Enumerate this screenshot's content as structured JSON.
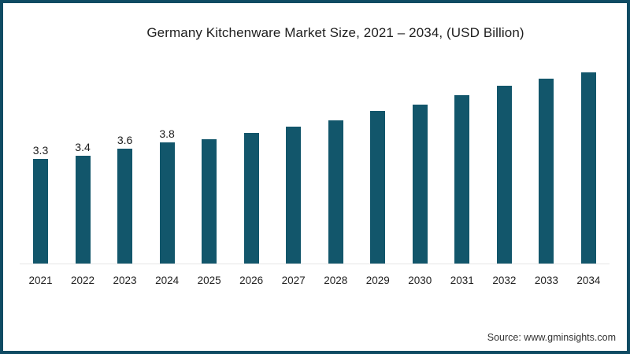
{
  "frame": {
    "border_color": "#0f4b63",
    "background": "#ffffff"
  },
  "chart_data": {
    "type": "bar",
    "title": "Germany Kitchenware Market Size, 2021 – 2034, (USD Billion)",
    "categories": [
      "2021",
      "2022",
      "2023",
      "2024",
      "2025",
      "2026",
      "2027",
      "2028",
      "2029",
      "2030",
      "2031",
      "2032",
      "2033",
      "2034"
    ],
    "values": [
      3.3,
      3.4,
      3.6,
      3.8,
      3.9,
      4.1,
      4.3,
      4.5,
      4.8,
      5.0,
      5.3,
      5.6,
      5.8,
      6.0
    ],
    "bar_labels": [
      "3.3",
      "3.4",
      "3.6",
      "3.8",
      "",
      "",
      "",
      "",
      "",
      "",
      "",
      "",
      "",
      ""
    ],
    "bar_color": "#12566b",
    "xlabel": "",
    "ylabel": "",
    "ylim": [
      0,
      6.8
    ],
    "grid": false,
    "legend": "none",
    "axis_line_color": "#e6e6e6"
  },
  "source": {
    "label": "Source: www.gminsights.com"
  }
}
